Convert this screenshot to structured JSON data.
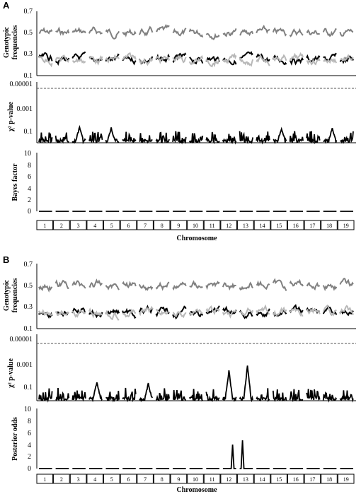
{
  "figure": {
    "panels": [
      {
        "label": "A",
        "chromosome_label": "Chromosome",
        "bottom_ylabel": "Bayes factor"
      },
      {
        "label": "B",
        "chromosome_label": "Chromosome",
        "bottom_ylabel": "Posterior odds"
      }
    ],
    "chromosomes": [
      "1",
      "2",
      "3",
      "4",
      "5",
      "6",
      "7",
      "8",
      "9",
      "10",
      "11",
      "12",
      "13",
      "14",
      "15",
      "16",
      "17",
      "18",
      "19"
    ],
    "colors": {
      "heterozygote": "#808080",
      "homozygote_a": "#000000",
      "homozygote_b": "#b8b8b8",
      "threshold": "#555555"
    }
  },
  "chart_data": [
    {
      "panel": "A",
      "type": "line",
      "ylabel": "Genotypic frequencies",
      "yticks": [
        "0.1",
        "0.3",
        "0.5",
        "0.7"
      ],
      "ylim": [
        0.1,
        0.7
      ],
      "series": [
        {
          "color": "#808080",
          "level": 0.5,
          "amp": 0.03
        },
        {
          "color": "#000000",
          "level": 0.25,
          "amp": 0.03
        },
        {
          "color": "#b8b8b8",
          "level": 0.25,
          "amp": 0.03
        }
      ]
    },
    {
      "panel": "A",
      "type": "line",
      "ylabel": "χ2 p-value",
      "yticks": [
        "0.00001",
        "0.001",
        "0.1"
      ],
      "log_scale": true,
      "threshold": 5e-05,
      "peaks": [
        {
          "chromosome": 3,
          "value": 0.05
        },
        {
          "chromosome": 5,
          "value": 0.06
        },
        {
          "chromosome": 15,
          "value": 0.06
        },
        {
          "chromosome": 18,
          "value": 0.06
        }
      ]
    },
    {
      "panel": "A",
      "type": "line",
      "ylabel": "Bayes factor",
      "yticks": [
        "0",
        "2",
        "4",
        "6",
        "8",
        "10"
      ],
      "ylim": [
        0,
        10
      ],
      "values_per_chromosome": [
        0,
        0,
        0,
        0,
        0,
        0,
        0,
        0,
        0,
        0,
        0,
        0,
        0,
        0,
        0,
        0,
        0,
        0,
        0
      ]
    },
    {
      "panel": "B",
      "type": "line",
      "ylabel": "Genotypic frequencies",
      "yticks": [
        "0.1",
        "0.3",
        "0.5",
        "0.7"
      ],
      "ylim": [
        0.1,
        0.7
      ],
      "series": [
        {
          "color": "#808080",
          "level": 0.5,
          "amp": 0.03
        },
        {
          "color": "#000000",
          "level": 0.25,
          "amp": 0.03
        },
        {
          "color": "#b8b8b8",
          "level": 0.25,
          "amp": 0.03
        }
      ]
    },
    {
      "panel": "B",
      "type": "line",
      "ylabel": "χ2 p-value",
      "yticks": [
        "0.00001",
        "0.001",
        "0.1"
      ],
      "log_scale": true,
      "threshold": 5e-05,
      "peaks": [
        {
          "chromosome": 12,
          "value": 0.005
        },
        {
          "chromosome": 13,
          "value": 0.002
        },
        {
          "chromosome": 4,
          "value": 0.04
        },
        {
          "chromosome": 7,
          "value": 0.05
        }
      ]
    },
    {
      "panel": "B",
      "type": "line",
      "ylabel": "Posterior odds",
      "yticks": [
        "0",
        "2",
        "4",
        "6",
        "8",
        "10"
      ],
      "ylim": [
        0,
        10
      ],
      "peaks": [
        {
          "chromosome": 12,
          "value": 4.0
        },
        {
          "chromosome": 13,
          "value": 4.7
        }
      ]
    }
  ]
}
